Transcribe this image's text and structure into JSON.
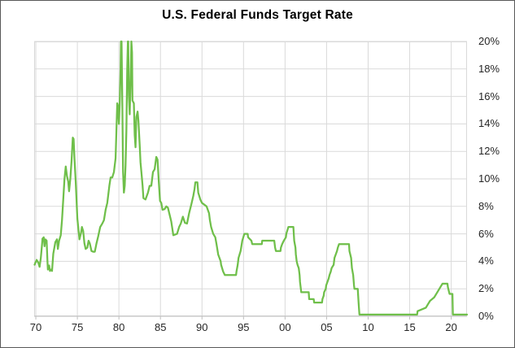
{
  "chart": {
    "title": "U.S. Federal Funds Target Rate"
  },
  "colors": {
    "line": "#6FBF4A",
    "grid": "#DADADA",
    "plot_border": "#D9D9D9",
    "axis": "#BFBFBF",
    "tick_text": "#262626",
    "title_text": "#000000",
    "frame_border": "#595959",
    "background": "#FFFFFF"
  },
  "chart_data": {
    "type": "line",
    "title": "U.S. Federal Funds Target Rate",
    "xlabel": "",
    "ylabel": "",
    "grid": true,
    "legend": "none",
    "x_axis": {
      "range": [
        1969.8,
        2021.9
      ],
      "ticks": [
        {
          "year": 1970,
          "label": "70"
        },
        {
          "year": 1975,
          "label": "75"
        },
        {
          "year": 1980,
          "label": "80"
        },
        {
          "year": 1985,
          "label": "85"
        },
        {
          "year": 1990,
          "label": "90"
        },
        {
          "year": 1995,
          "label": "95"
        },
        {
          "year": 2000,
          "label": "00"
        },
        {
          "year": 2005,
          "label": "05"
        },
        {
          "year": 2010,
          "label": "10"
        },
        {
          "year": 2015,
          "label": "15"
        },
        {
          "year": 2020,
          "label": "20"
        }
      ]
    },
    "y_axis": {
      "range": [
        0,
        20
      ],
      "position": "right",
      "ticks": [
        {
          "value": 0,
          "label": "0%"
        },
        {
          "value": 2,
          "label": "2%"
        },
        {
          "value": 4,
          "label": "4%"
        },
        {
          "value": 6,
          "label": "6%"
        },
        {
          "value": 8,
          "label": "8%"
        },
        {
          "value": 10,
          "label": "10%"
        },
        {
          "value": 12,
          "label": "12%"
        },
        {
          "value": 14,
          "label": "14%"
        },
        {
          "value": 16,
          "label": "16%"
        },
        {
          "value": 18,
          "label": "18%"
        },
        {
          "value": 20,
          "label": "20%"
        }
      ]
    },
    "series": [
      {
        "name": "Federal Funds Target Rate",
        "color": "#6FBF4A",
        "points": [
          [
            1969.85,
            3.75
          ],
          [
            1969.95,
            3.9
          ],
          [
            1970.1,
            4.1
          ],
          [
            1970.3,
            3.9
          ],
          [
            1970.45,
            3.6
          ],
          [
            1970.6,
            4.25
          ],
          [
            1970.75,
            5.25
          ],
          [
            1970.8,
            5.65
          ],
          [
            1970.95,
            5.75
          ],
          [
            1971.05,
            5.1
          ],
          [
            1971.15,
            5.6
          ],
          [
            1971.3,
            5.5
          ],
          [
            1971.4,
            4.0
          ],
          [
            1971.45,
            3.4
          ],
          [
            1971.6,
            3.7
          ],
          [
            1971.7,
            3.3
          ],
          [
            1971.85,
            3.4
          ],
          [
            1971.95,
            3.3
          ],
          [
            1972.1,
            4.55
          ],
          [
            1972.35,
            5.4
          ],
          [
            1972.55,
            5.6
          ],
          [
            1972.65,
            4.9
          ],
          [
            1972.8,
            5.5
          ],
          [
            1973.0,
            5.9
          ],
          [
            1973.15,
            7.0
          ],
          [
            1973.3,
            8.5
          ],
          [
            1973.45,
            10.0
          ],
          [
            1973.6,
            10.9
          ],
          [
            1973.75,
            10.2
          ],
          [
            1973.9,
            9.8
          ],
          [
            1974.0,
            9.1
          ],
          [
            1974.15,
            10.0
          ],
          [
            1974.3,
            11.3
          ],
          [
            1974.45,
            13.0
          ],
          [
            1974.55,
            12.9
          ],
          [
            1974.65,
            11.5
          ],
          [
            1974.8,
            9.8
          ],
          [
            1975.0,
            7.1
          ],
          [
            1975.15,
            6.2
          ],
          [
            1975.25,
            5.6
          ],
          [
            1975.45,
            6.1
          ],
          [
            1975.55,
            6.5
          ],
          [
            1975.7,
            6.2
          ],
          [
            1975.85,
            5.3
          ],
          [
            1976.0,
            4.9
          ],
          [
            1976.2,
            5.0
          ],
          [
            1976.35,
            5.5
          ],
          [
            1976.5,
            5.3
          ],
          [
            1976.7,
            4.75
          ],
          [
            1976.9,
            4.7
          ],
          [
            1977.1,
            4.7
          ],
          [
            1977.3,
            5.3
          ],
          [
            1977.5,
            5.8
          ],
          [
            1977.75,
            6.5
          ],
          [
            1978.0,
            6.75
          ],
          [
            1978.2,
            7.0
          ],
          [
            1978.4,
            7.75
          ],
          [
            1978.6,
            8.25
          ],
          [
            1978.85,
            9.5
          ],
          [
            1979.0,
            10.1
          ],
          [
            1979.2,
            10.1
          ],
          [
            1979.4,
            10.5
          ],
          [
            1979.6,
            11.5
          ],
          [
            1979.7,
            13.5
          ],
          [
            1979.8,
            15.5
          ],
          [
            1979.9,
            15.3
          ],
          [
            1980.0,
            14.0
          ],
          [
            1980.1,
            15.5
          ],
          [
            1980.2,
            18.0
          ],
          [
            1980.25,
            20.0
          ],
          [
            1980.32,
            20.0
          ],
          [
            1980.4,
            16.0
          ],
          [
            1980.5,
            10.5
          ],
          [
            1980.6,
            9.0
          ],
          [
            1980.7,
            9.5
          ],
          [
            1980.8,
            11.0
          ],
          [
            1980.9,
            13.5
          ],
          [
            1981.0,
            18.0
          ],
          [
            1981.08,
            20.0
          ],
          [
            1981.12,
            20.0
          ],
          [
            1981.2,
            16.0
          ],
          [
            1981.3,
            14.7
          ],
          [
            1981.4,
            17.0
          ],
          [
            1981.5,
            20.0
          ],
          [
            1981.58,
            19.2
          ],
          [
            1981.63,
            15.7
          ],
          [
            1981.8,
            15.5
          ],
          [
            1981.9,
            13.2
          ],
          [
            1982.0,
            12.3
          ],
          [
            1982.1,
            14.5
          ],
          [
            1982.25,
            14.9
          ],
          [
            1982.35,
            14.2
          ],
          [
            1982.5,
            12.5
          ],
          [
            1982.6,
            11.2
          ],
          [
            1982.75,
            10.2
          ],
          [
            1982.85,
            9.5
          ],
          [
            1982.95,
            8.6
          ],
          [
            1983.2,
            8.5
          ],
          [
            1983.5,
            9.0
          ],
          [
            1983.7,
            9.5
          ],
          [
            1983.9,
            9.5
          ],
          [
            1984.1,
            10.5
          ],
          [
            1984.3,
            10.7
          ],
          [
            1984.5,
            11.6
          ],
          [
            1984.65,
            11.4
          ],
          [
            1984.8,
            9.8
          ],
          [
            1984.95,
            8.4
          ],
          [
            1985.1,
            8.25
          ],
          [
            1985.25,
            7.75
          ],
          [
            1985.5,
            7.8
          ],
          [
            1985.7,
            8.0
          ],
          [
            1985.9,
            7.9
          ],
          [
            1986.1,
            7.4
          ],
          [
            1986.3,
            6.9
          ],
          [
            1986.55,
            5.9
          ],
          [
            1987.0,
            6.0
          ],
          [
            1987.25,
            6.5
          ],
          [
            1987.45,
            6.75
          ],
          [
            1987.7,
            7.25
          ],
          [
            1987.95,
            6.8
          ],
          [
            1988.2,
            6.75
          ],
          [
            1988.45,
            7.5
          ],
          [
            1988.7,
            8.1
          ],
          [
            1988.95,
            8.75
          ],
          [
            1989.1,
            9.25
          ],
          [
            1989.2,
            9.75
          ],
          [
            1989.45,
            9.75
          ],
          [
            1989.55,
            9.0
          ],
          [
            1989.8,
            8.5
          ],
          [
            1990.0,
            8.25
          ],
          [
            1990.55,
            8.0
          ],
          [
            1990.85,
            7.5
          ],
          [
            1990.95,
            7.0
          ],
          [
            1991.1,
            6.5
          ],
          [
            1991.35,
            6.0
          ],
          [
            1991.6,
            5.75
          ],
          [
            1991.75,
            5.25
          ],
          [
            1991.95,
            4.5
          ],
          [
            1992.25,
            4.0
          ],
          [
            1992.3,
            3.75
          ],
          [
            1992.55,
            3.25
          ],
          [
            1992.75,
            3.0
          ],
          [
            1994.1,
            3.0
          ],
          [
            1994.15,
            3.25
          ],
          [
            1994.3,
            3.75
          ],
          [
            1994.4,
            4.25
          ],
          [
            1994.65,
            4.75
          ],
          [
            1994.85,
            5.5
          ],
          [
            1995.1,
            6.0
          ],
          [
            1995.5,
            6.0
          ],
          [
            1995.55,
            5.75
          ],
          [
            1995.95,
            5.5
          ],
          [
            1996.05,
            5.25
          ],
          [
            1997.2,
            5.25
          ],
          [
            1997.25,
            5.5
          ],
          [
            1998.7,
            5.5
          ],
          [
            1998.75,
            5.25
          ],
          [
            1998.8,
            5.0
          ],
          [
            1998.9,
            4.75
          ],
          [
            1999.45,
            4.75
          ],
          [
            1999.5,
            5.0
          ],
          [
            1999.65,
            5.25
          ],
          [
            1999.85,
            5.5
          ],
          [
            2000.1,
            5.75
          ],
          [
            2000.15,
            6.0
          ],
          [
            2000.4,
            6.5
          ],
          [
            2001.0,
            6.5
          ],
          [
            2001.05,
            6.0
          ],
          [
            2001.1,
            5.5
          ],
          [
            2001.25,
            5.0
          ],
          [
            2001.3,
            4.5
          ],
          [
            2001.4,
            4.0
          ],
          [
            2001.5,
            3.75
          ],
          [
            2001.65,
            3.5
          ],
          [
            2001.75,
            3.0
          ],
          [
            2001.8,
            2.5
          ],
          [
            2001.9,
            2.0
          ],
          [
            2001.95,
            1.75
          ],
          [
            2002.85,
            1.75
          ],
          [
            2002.9,
            1.25
          ],
          [
            2003.45,
            1.25
          ],
          [
            2003.5,
            1.0
          ],
          [
            2004.45,
            1.0
          ],
          [
            2004.5,
            1.25
          ],
          [
            2004.65,
            1.5
          ],
          [
            2004.7,
            1.75
          ],
          [
            2004.9,
            2.0
          ],
          [
            2004.95,
            2.25
          ],
          [
            2005.1,
            2.5
          ],
          [
            2005.25,
            2.75
          ],
          [
            2005.35,
            3.0
          ],
          [
            2005.5,
            3.25
          ],
          [
            2005.6,
            3.5
          ],
          [
            2005.85,
            3.75
          ],
          [
            2005.95,
            4.25
          ],
          [
            2006.1,
            4.5
          ],
          [
            2006.25,
            4.75
          ],
          [
            2006.35,
            5.0
          ],
          [
            2006.5,
            5.25
          ],
          [
            2007.7,
            5.25
          ],
          [
            2007.75,
            4.75
          ],
          [
            2007.85,
            4.5
          ],
          [
            2007.95,
            4.25
          ],
          [
            2008.05,
            3.5
          ],
          [
            2008.2,
            3.0
          ],
          [
            2008.3,
            2.25
          ],
          [
            2008.35,
            2.0
          ],
          [
            2008.75,
            2.0
          ],
          [
            2008.8,
            1.5
          ],
          [
            2008.85,
            1.0
          ],
          [
            2008.95,
            0.125
          ],
          [
            2015.9,
            0.125
          ],
          [
            2015.95,
            0.375
          ],
          [
            2016.95,
            0.625
          ],
          [
            2017.2,
            0.875
          ],
          [
            2017.45,
            1.125
          ],
          [
            2017.95,
            1.375
          ],
          [
            2018.2,
            1.625
          ],
          [
            2018.45,
            1.875
          ],
          [
            2018.7,
            2.125
          ],
          [
            2018.95,
            2.375
          ],
          [
            2019.55,
            2.375
          ],
          [
            2019.6,
            2.125
          ],
          [
            2019.7,
            1.875
          ],
          [
            2019.8,
            1.625
          ],
          [
            2020.15,
            1.625
          ],
          [
            2020.2,
            0.125
          ],
          [
            2021.9,
            0.125
          ]
        ]
      }
    ]
  }
}
